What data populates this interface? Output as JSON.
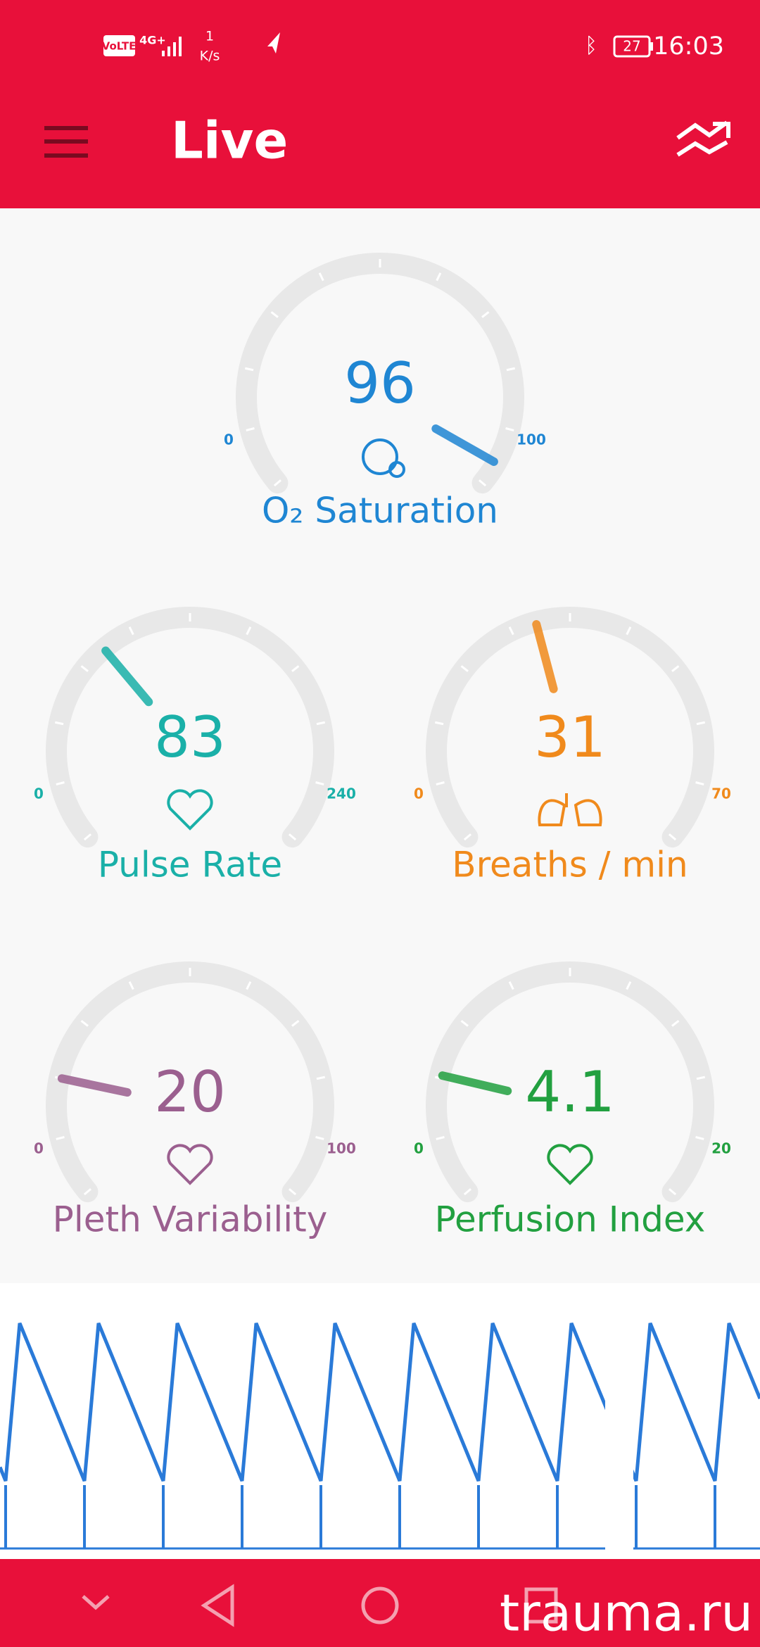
{
  "status_bar": {
    "network": "VoLTE",
    "signal": "4G+",
    "speed": "1",
    "speed_unit": "K/s",
    "battery": "27",
    "time": "16:03"
  },
  "header": {
    "title": "Live"
  },
  "gauges": [
    {
      "name": "O₂ Saturation",
      "value": 96,
      "min": 0,
      "max": 100,
      "color": "#1f86d3"
    },
    {
      "name": "Pulse Rate",
      "value": 83,
      "min": 0,
      "max": 240,
      "color": "#1ab0a8"
    },
    {
      "name": "Breaths / min",
      "value": 31,
      "min": 0,
      "max": 70,
      "color": "#f08a1c"
    },
    {
      "name": "Pleth Variability",
      "value": 20,
      "min": 0,
      "max": 100,
      "color": "#9b5f8f"
    },
    {
      "name": "Perfusion Index",
      "value": 4.1,
      "min": 0,
      "max": 20,
      "color": "#22a040"
    }
  ],
  "watermark": "trauma.ru"
}
